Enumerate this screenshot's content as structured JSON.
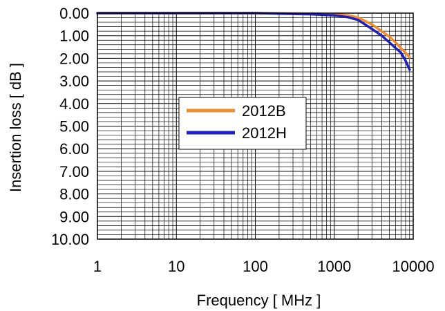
{
  "chart_data": {
    "type": "line",
    "title": "",
    "xlabel": "Frequency [ MHz ]",
    "ylabel": "Insertion loss [ dB ]",
    "x_scale": "log",
    "xlim": [
      1,
      10000
    ],
    "ylim": [
      0,
      10
    ],
    "y_inverted": true,
    "grid": true,
    "x_tick_labels": [
      "1",
      "10",
      "100",
      "1000",
      "10000"
    ],
    "y_tick_labels": [
      "0.00",
      "1.00",
      "2.00",
      "3.00",
      "4.00",
      "5.00",
      "6.00",
      "7.00",
      "8.00",
      "9.00",
      "10.00"
    ],
    "legend_position": "center",
    "series": [
      {
        "name": "2012B",
        "color": "#F28C28",
        "x": [
          1,
          10,
          100,
          500,
          1000,
          1500,
          2000,
          3000,
          4000,
          5000,
          6000,
          7000,
          8000,
          9000
        ],
        "y": [
          0.0,
          0.0,
          0.0,
          0.02,
          0.05,
          0.1,
          0.2,
          0.5,
          0.8,
          1.05,
          1.3,
          1.55,
          1.75,
          1.95
        ]
      },
      {
        "name": "2012H",
        "color": "#1F1FBF",
        "x": [
          1,
          10,
          100,
          500,
          1000,
          1500,
          2000,
          3000,
          4000,
          5000,
          6000,
          7000,
          8000,
          9000
        ],
        "y": [
          0.0,
          0.0,
          0.0,
          0.05,
          0.1,
          0.18,
          0.3,
          0.7,
          1.0,
          1.3,
          1.55,
          1.75,
          2.1,
          2.5
        ]
      }
    ]
  }
}
